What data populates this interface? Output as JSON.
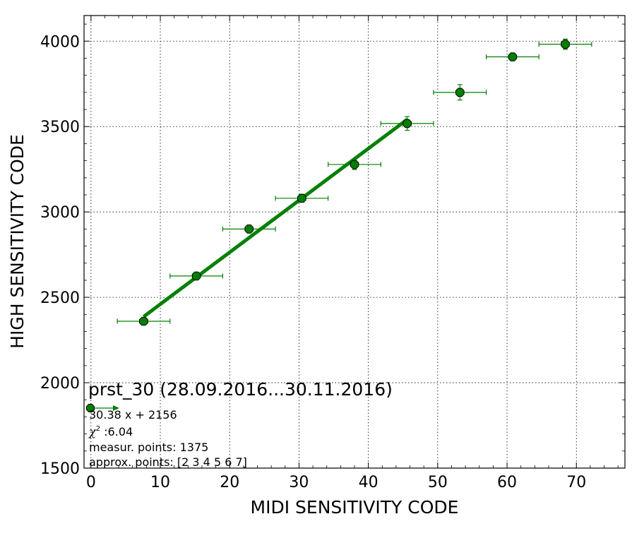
{
  "chart_data": {
    "type": "scatter",
    "xlabel": "MIDI SENSITIVITY CODE",
    "ylabel": "HIGH SENSITIVITY CODE",
    "xlim": [
      -1,
      77
    ],
    "ylim": [
      1500,
      4150
    ],
    "xticks": [
      0,
      10,
      20,
      30,
      40,
      50,
      60,
      70
    ],
    "yticks": [
      1500,
      2000,
      2500,
      3000,
      3500,
      4000
    ],
    "grid": true,
    "colors": {
      "series": "#008000",
      "marker_fill": "#007f00",
      "marker_edge": "#000000"
    },
    "points": [
      {
        "x": 7.6,
        "y": 2360,
        "xerr": 3.8,
        "yerr": 10
      },
      {
        "x": 15.2,
        "y": 2625,
        "xerr": 3.8,
        "yerr": 12
      },
      {
        "x": 22.8,
        "y": 2900,
        "xerr": 3.8,
        "yerr": 15
      },
      {
        "x": 30.4,
        "y": 3080,
        "xerr": 3.8,
        "yerr": 22
      },
      {
        "x": 38.0,
        "y": 3278,
        "xerr": 3.8,
        "yerr": 30
      },
      {
        "x": 45.6,
        "y": 3518,
        "xerr": 3.8,
        "yerr": 40
      },
      {
        "x": 53.2,
        "y": 3700,
        "xerr": 3.8,
        "yerr": 45
      },
      {
        "x": 60.8,
        "y": 3908,
        "xerr": 3.8,
        "yerr": 15
      },
      {
        "x": 68.4,
        "y": 3982,
        "xerr": 3.8,
        "yerr": 30
      }
    ],
    "fit": {
      "slope": 30.38,
      "intercept": 2156,
      "x_range": [
        7.6,
        45.6
      ]
    },
    "annotation": {
      "title": "prst_30 (28.09.2016...30.11.2016)",
      "equation": "30.38 x + 2156",
      "chi2_symbol": "χ",
      "chi2_sup": "2",
      "chi2_value": " :6.04",
      "measur_points": "measur. points: 1375",
      "approx_points": "approx. points: [2 3 4 5 6 7]"
    }
  }
}
